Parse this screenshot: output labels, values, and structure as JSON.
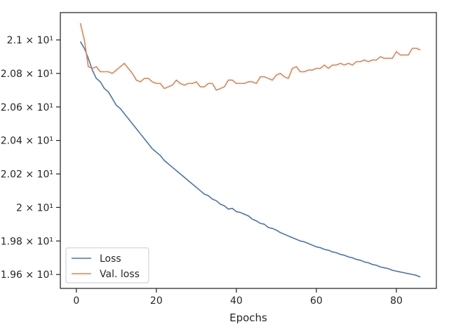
{
  "chart_data": {
    "type": "line",
    "title": "",
    "xlabel": "Epochs",
    "ylabel": "",
    "xlim": [
      -4,
      90
    ],
    "ylim": [
      19.517,
      21.163
    ],
    "x_ticks": [
      0,
      20,
      40,
      60,
      80
    ],
    "y_ticks": [
      {
        "value": 19.6,
        "label": "1.96 × 10¹"
      },
      {
        "value": 19.8,
        "label": "1.98 × 10¹"
      },
      {
        "value": 20.0,
        "label": "2 × 10¹"
      },
      {
        "value": 20.2,
        "label": "2.02 × 10¹"
      },
      {
        "value": 20.4,
        "label": "2.04 × 10¹"
      },
      {
        "value": 20.6,
        "label": "2.06 × 10¹"
      },
      {
        "value": 20.8,
        "label": "2.08 × 10¹"
      },
      {
        "value": 21.0,
        "label": "2.1 × 10¹"
      }
    ],
    "grid": false,
    "legend_position": "lower-left",
    "x": [
      1,
      2,
      3,
      4,
      5,
      6,
      7,
      8,
      9,
      10,
      11,
      12,
      13,
      14,
      15,
      16,
      17,
      18,
      19,
      20,
      21,
      22,
      23,
      24,
      25,
      26,
      27,
      28,
      29,
      30,
      31,
      32,
      33,
      34,
      35,
      36,
      37,
      38,
      39,
      40,
      41,
      42,
      43,
      44,
      45,
      46,
      47,
      48,
      49,
      50,
      51,
      52,
      53,
      54,
      55,
      56,
      57,
      58,
      59,
      60,
      61,
      62,
      63,
      64,
      65,
      66,
      67,
      68,
      69,
      70,
      71,
      72,
      73,
      74,
      75,
      76,
      77,
      78,
      79,
      80,
      81,
      82,
      83,
      84,
      85,
      86
    ],
    "series": [
      {
        "name": "Loss",
        "color": "#4c72b0",
        "values": [
          20.99,
          20.95,
          20.89,
          20.82,
          20.77,
          20.75,
          20.71,
          20.69,
          20.65,
          20.61,
          20.59,
          20.56,
          20.53,
          20.5,
          20.47,
          20.44,
          20.41,
          20.38,
          20.35,
          20.33,
          20.31,
          20.28,
          20.26,
          20.24,
          20.22,
          20.2,
          20.18,
          20.16,
          20.14,
          20.12,
          20.1,
          20.08,
          20.07,
          20.05,
          20.04,
          20.02,
          20.01,
          19.99,
          19.995,
          19.975,
          19.97,
          19.96,
          19.95,
          19.93,
          19.92,
          19.905,
          19.9,
          19.88,
          19.875,
          19.865,
          19.85,
          19.84,
          19.83,
          19.82,
          19.81,
          19.8,
          19.795,
          19.785,
          19.775,
          19.765,
          19.76,
          19.75,
          19.745,
          19.735,
          19.73,
          19.72,
          19.715,
          19.705,
          19.7,
          19.69,
          19.685,
          19.675,
          19.67,
          19.66,
          19.655,
          19.645,
          19.64,
          19.635,
          19.625,
          19.62,
          19.615,
          19.61,
          19.605,
          19.6,
          19.595,
          19.585
        ]
      },
      {
        "name": "Val. loss",
        "color": "#dd8452",
        "values": [
          21.1,
          21.0,
          20.84,
          20.83,
          20.84,
          20.81,
          20.81,
          20.81,
          20.8,
          20.82,
          20.84,
          20.86,
          20.83,
          20.8,
          20.76,
          20.75,
          20.77,
          20.77,
          20.75,
          20.74,
          20.74,
          20.71,
          20.72,
          20.73,
          20.76,
          20.74,
          20.73,
          20.74,
          20.74,
          20.75,
          20.72,
          20.72,
          20.74,
          20.74,
          20.7,
          20.71,
          20.72,
          20.76,
          20.76,
          20.74,
          20.74,
          20.74,
          20.75,
          20.75,
          20.74,
          20.78,
          20.78,
          20.77,
          20.76,
          20.79,
          20.8,
          20.78,
          20.77,
          20.83,
          20.84,
          20.81,
          20.81,
          20.82,
          20.82,
          20.83,
          20.83,
          20.85,
          20.83,
          20.85,
          20.85,
          20.86,
          20.85,
          20.86,
          20.85,
          20.87,
          20.87,
          20.88,
          20.87,
          20.88,
          20.88,
          20.9,
          20.89,
          20.89,
          20.89,
          20.93,
          20.91,
          20.91,
          20.91,
          20.95,
          20.95,
          20.94
        ]
      }
    ]
  }
}
